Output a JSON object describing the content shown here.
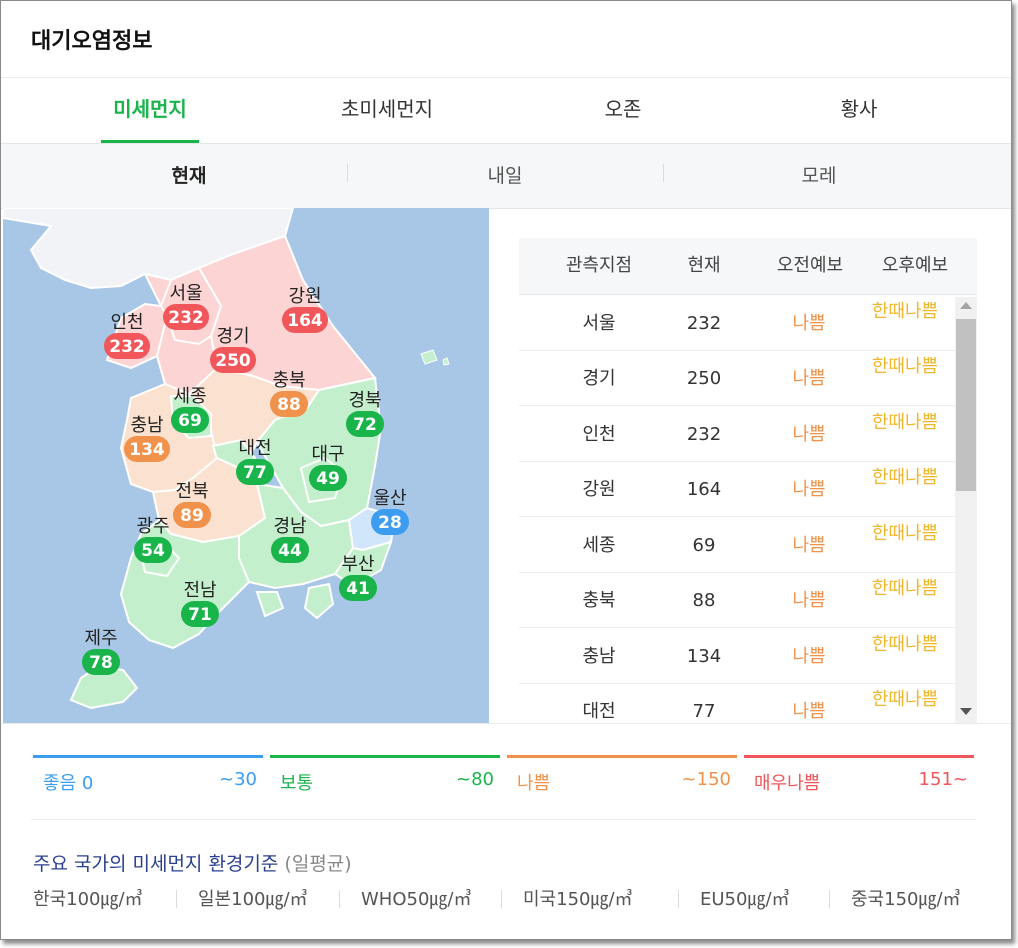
{
  "title": "대기오염정보",
  "tabs": [
    "미세먼지",
    "초미세먼지",
    "오존",
    "황사"
  ],
  "subtabs": [
    "현재",
    "내일",
    "모레"
  ],
  "colors": {
    "good": "#3b9cf0",
    "normal": "#19b44a",
    "bad": "#f0924b",
    "very_bad": "#f0565a",
    "accent": "#19b44a",
    "sea": "#a8c7e6",
    "north": "#f1f3f6"
  },
  "map": {
    "regions": [
      {
        "name": "서울",
        "value": "232",
        "level": "very_bad"
      },
      {
        "name": "인천",
        "value": "232",
        "level": "very_bad"
      },
      {
        "name": "강원",
        "value": "164",
        "level": "very_bad"
      },
      {
        "name": "경기",
        "value": "250",
        "level": "very_bad"
      },
      {
        "name": "충북",
        "value": "88",
        "level": "bad"
      },
      {
        "name": "세종",
        "value": "69",
        "level": "normal"
      },
      {
        "name": "경북",
        "value": "72",
        "level": "normal"
      },
      {
        "name": "충남",
        "value": "134",
        "level": "bad"
      },
      {
        "name": "대전",
        "value": "77",
        "level": "normal"
      },
      {
        "name": "대구",
        "value": "49",
        "level": "normal"
      },
      {
        "name": "전북",
        "value": "89",
        "level": "bad"
      },
      {
        "name": "울산",
        "value": "28",
        "level": "good"
      },
      {
        "name": "광주",
        "value": "54",
        "level": "normal"
      },
      {
        "name": "경남",
        "value": "44",
        "level": "normal"
      },
      {
        "name": "부산",
        "value": "41",
        "level": "normal"
      },
      {
        "name": "전남",
        "value": "71",
        "level": "normal"
      },
      {
        "name": "제주",
        "value": "78",
        "level": "normal"
      }
    ]
  },
  "table": {
    "headers": [
      "관측지점",
      "현재",
      "오전예보",
      "오후예보"
    ],
    "rows": [
      {
        "name": "서울",
        "now": "232",
        "am": "나쁨",
        "pm": "한때나쁨"
      },
      {
        "name": "경기",
        "now": "250",
        "am": "나쁨",
        "pm": "한때나쁨"
      },
      {
        "name": "인천",
        "now": "232",
        "am": "나쁨",
        "pm": "한때나쁨"
      },
      {
        "name": "강원",
        "now": "164",
        "am": "나쁨",
        "pm": "한때나쁨"
      },
      {
        "name": "세종",
        "now": "69",
        "am": "나쁨",
        "pm": "한때나쁨"
      },
      {
        "name": "충북",
        "now": "88",
        "am": "나쁨",
        "pm": "한때나쁨"
      },
      {
        "name": "충남",
        "now": "134",
        "am": "나쁨",
        "pm": "한때나쁨"
      },
      {
        "name": "대전",
        "now": "77",
        "am": "나쁨",
        "pm": "한때나쁨"
      }
    ]
  },
  "legend": [
    {
      "name": "좋음 0",
      "range": "~30",
      "level": "good"
    },
    {
      "name": "보통",
      "range": "~80",
      "level": "normal"
    },
    {
      "name": "나쁨",
      "range": "~150",
      "level": "bad"
    },
    {
      "name": "매우나쁨",
      "range": "151~",
      "level": "very_bad"
    }
  ],
  "standards": {
    "title": "주요 국가의 미세먼지 환경기준",
    "title_paren": "(일평균)",
    "items": [
      "한국100㎍/㎥",
      "일본100㎍/㎥",
      "WHO50㎍/㎥",
      "미국150㎍/㎥",
      "EU50㎍/㎥",
      "중국150㎍/㎥"
    ]
  }
}
